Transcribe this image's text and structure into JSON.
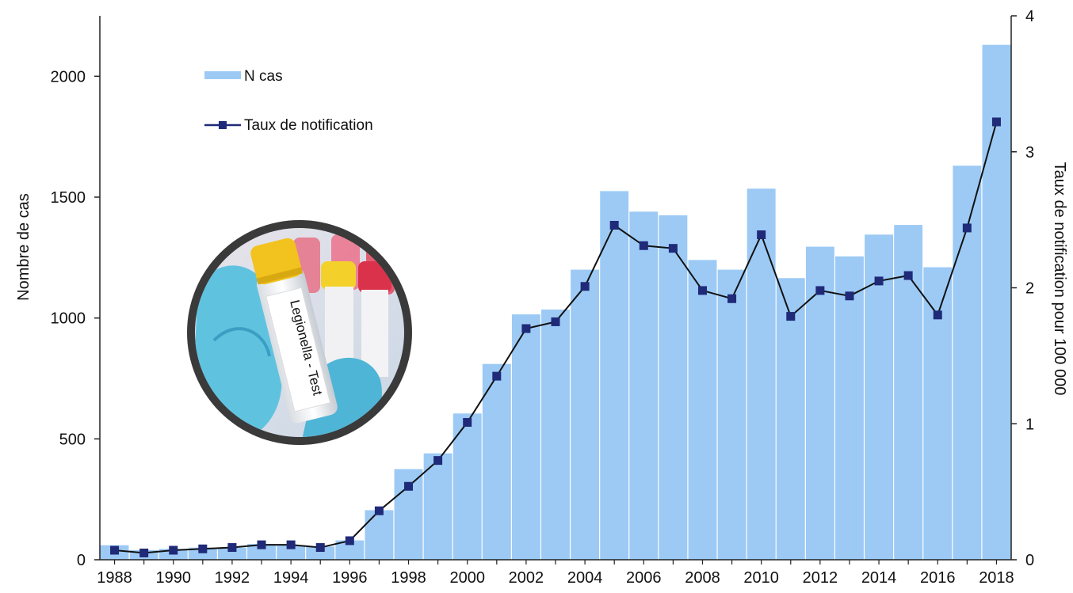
{
  "chart_data": {
    "type": "bar",
    "title": "",
    "xlabel": "",
    "ylabel": "Nombre de cas",
    "ylabel_right": "Taux de notification pour 100 000",
    "ylim": [
      0,
      2250
    ],
    "ylim_right": [
      0,
      4
    ],
    "y_ticks": [
      "0",
      "500",
      "1000",
      "1500",
      "2000"
    ],
    "y_tick_values": [
      0,
      500,
      1000,
      1500,
      2000
    ],
    "y_right_ticks": [
      "0",
      "1",
      "2",
      "3",
      "4"
    ],
    "y_right_tick_values": [
      0,
      1,
      2,
      3,
      4
    ],
    "x_tick_labels": [
      "1988",
      "1990",
      "1992",
      "1994",
      "1996",
      "1998",
      "2000",
      "2002",
      "2004",
      "2006",
      "2008",
      "2010",
      "2012",
      "2014",
      "2016",
      "2018"
    ],
    "categories": [
      "1988",
      "1989",
      "1990",
      "1991",
      "1992",
      "1993",
      "1994",
      "1995",
      "1996",
      "1997",
      "1998",
      "1999",
      "2000",
      "2001",
      "2002",
      "2003",
      "2004",
      "2005",
      "2006",
      "2007",
      "2008",
      "2009",
      "2010",
      "2011",
      "2012",
      "2013",
      "2014",
      "2015",
      "2016",
      "2017",
      "2018"
    ],
    "series": [
      {
        "name": "N cas",
        "type": "bar",
        "axis": "left",
        "color": "#9ccaf5",
        "values": [
          60,
          40,
          45,
          50,
          50,
          65,
          60,
          55,
          80,
          205,
          375,
          440,
          605,
          810,
          1015,
          1035,
          1200,
          1525,
          1440,
          1425,
          1240,
          1200,
          1535,
          1165,
          1295,
          1255,
          1345,
          1385,
          1210,
          1630,
          2130
        ]
      },
      {
        "name": "Taux de notification",
        "type": "line",
        "axis": "right",
        "color": "#1f2a78",
        "values": [
          0.07,
          0.05,
          0.07,
          0.08,
          0.09,
          0.11,
          0.11,
          0.09,
          0.14,
          0.36,
          0.54,
          0.73,
          1.01,
          1.35,
          1.7,
          1.75,
          2.01,
          2.46,
          2.31,
          2.29,
          1.98,
          1.92,
          2.39,
          1.79,
          1.98,
          1.94,
          2.05,
          2.09,
          1.8,
          2.44,
          3.22
        ]
      }
    ],
    "legend": [
      {
        "label": "N cas",
        "kind": "bar"
      },
      {
        "label": "Taux de notification",
        "kind": "line"
      }
    ],
    "legend_position": "top-left",
    "grid": false
  },
  "image_overlay": {
    "label_text": "Legionella - Test",
    "frame_color": "#3a3a3a",
    "glove_color": "#5fc3e0",
    "cap_color": "#f2c21e"
  }
}
